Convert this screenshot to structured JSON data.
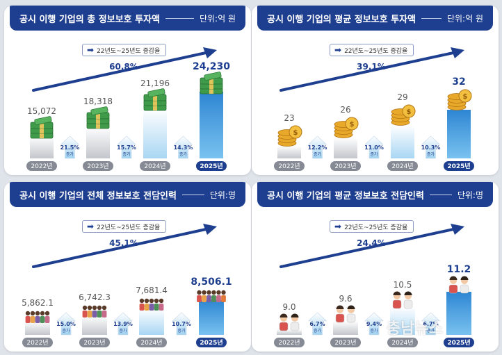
{
  "legend_label": "22년도~25년도 증감율",
  "watermark": "충남뉴스",
  "chart_data": [
    {
      "type": "bar",
      "title": "공시 이행 기업의 총 정보보호 투자액",
      "unit": "단위:억 원",
      "categories": [
        "2022년",
        "2023년",
        "2024년",
        "2025년"
      ],
      "values": [
        15072,
        18318,
        21196,
        24230
      ],
      "value_labels": [
        "15,072",
        "18,318",
        "21,196",
        "24,230"
      ],
      "growth": [
        {
          "pct": "21.5%",
          "label": "증가"
        },
        {
          "pct": "15.7%",
          "label": "증가"
        },
        {
          "pct": "14.3%",
          "label": "증가"
        }
      ],
      "total_change": "60.8%",
      "icon": "money-stack-icon"
    },
    {
      "type": "bar",
      "title": "공시 이행 기업의 평균 정보보호 투자액",
      "unit": "단위:억 원",
      "categories": [
        "2022년",
        "2023년",
        "2024년",
        "2025년"
      ],
      "values": [
        23,
        26,
        29,
        32
      ],
      "value_labels": [
        "23",
        "26",
        "29",
        "32"
      ],
      "growth": [
        {
          "pct": "12.2%",
          "label": "증가"
        },
        {
          "pct": "11.0%",
          "label": "증가"
        },
        {
          "pct": "10.3%",
          "label": "증가"
        }
      ],
      "total_change": "39.1%",
      "icon": "coin-stack-icon"
    },
    {
      "type": "bar",
      "title": "공시 이행 기업의 전체 정보보호 전담인력",
      "unit": "단위:명",
      "categories": [
        "2022년",
        "2023년",
        "2024년",
        "2025년"
      ],
      "values": [
        5862.1,
        6742.3,
        7681.4,
        8506.1
      ],
      "value_labels": [
        "5,862.1",
        "6,742.3",
        "7,681.4",
        "8,506.1"
      ],
      "growth": [
        {
          "pct": "15.0%",
          "label": "증가"
        },
        {
          "pct": "13.9%",
          "label": "증가"
        },
        {
          "pct": "10.7%",
          "label": "증가"
        }
      ],
      "total_change": "45.1%",
      "icon": "people-group-icon"
    },
    {
      "type": "bar",
      "title": "공시 이행 기업의 평균 정보보호 전담인력",
      "unit": "단위:명",
      "categories": [
        "2022년",
        "2023년",
        "2024년",
        "2025년"
      ],
      "values": [
        9.0,
        9.6,
        10.5,
        11.2
      ],
      "value_labels": [
        "9.0",
        "9.6",
        "10.5",
        "11.2"
      ],
      "growth": [
        {
          "pct": "6.7%",
          "label": "증가"
        },
        {
          "pct": "9.4%",
          "label": "증가"
        },
        {
          "pct": "6.7%",
          "label": "증가"
        }
      ],
      "total_change": "24.4%",
      "icon": "people-pair-icon"
    }
  ]
}
